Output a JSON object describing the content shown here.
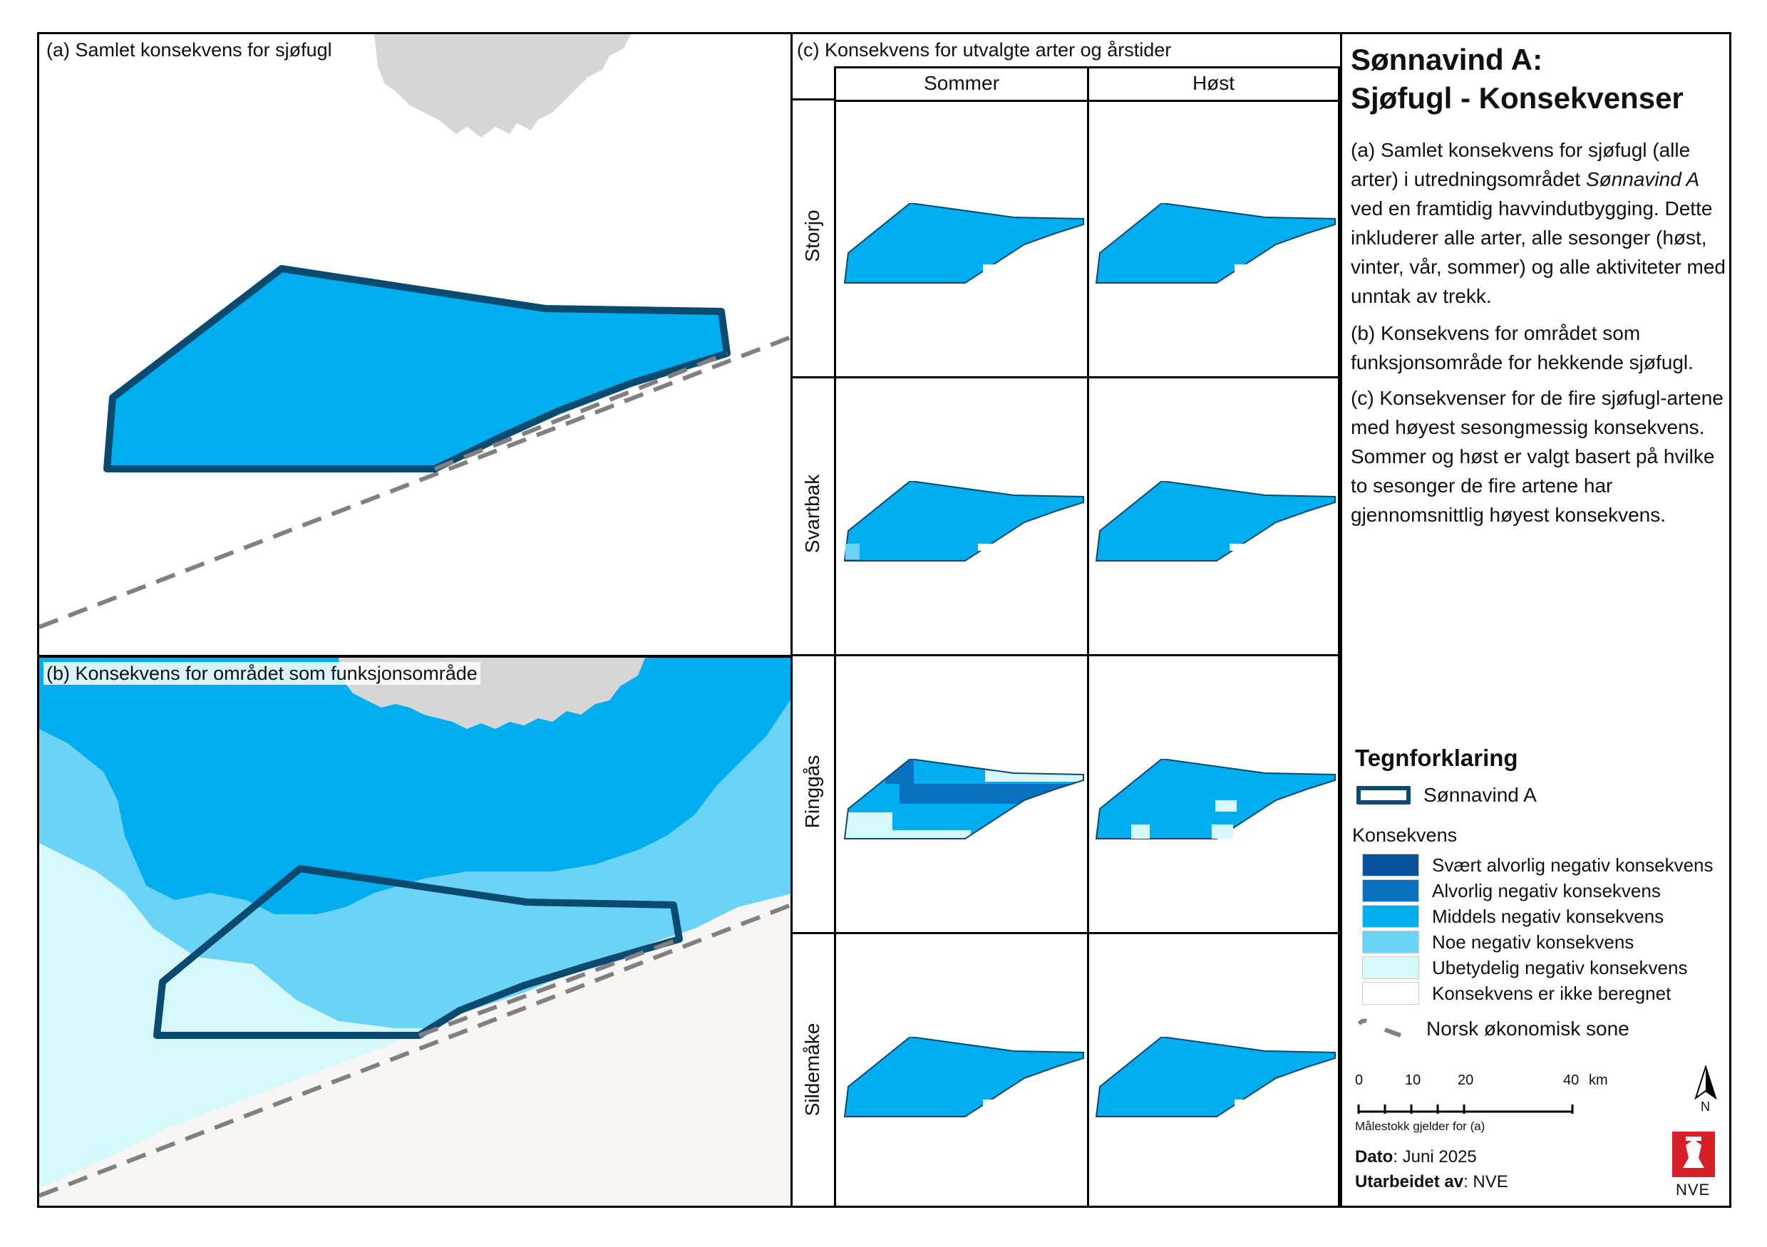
{
  "colors": {
    "zone_fill": "#00AEEF",
    "zone_stroke": "#0A4A70",
    "eez_line": "#808080",
    "land": "#D6D6D6",
    "sea_background_b": "#F7F6F4",
    "svaert_alvorlig": "#08519C",
    "alvorlig": "#0A71BE",
    "middels": "#00AEEF",
    "noe": "#6BD3F5",
    "ubetydelig": "#D7F8FB",
    "ikke_beregnet": "#FFFFFF"
  },
  "panel_a": {
    "title": "(a) Samlet konsekvens for sjøfugl"
  },
  "panel_b": {
    "title": "(b) Konsekvens for området som funksjonsområde"
  },
  "panel_c": {
    "title": "(c) Konsekvens for utvalgte arter og årstider",
    "columns": [
      "Sommer",
      "Høst"
    ],
    "rows": [
      "Storjo",
      "Svartbak",
      "Ringgås",
      "Sildemåke"
    ]
  },
  "side": {
    "title_line1": "Sønnavind A:",
    "title_line2": "Sjøfugl - Konsekvenser",
    "desc_a_pre": "(a) Samlet konsekvens for sjøfugl (alle arter) i utredningsområdet ",
    "desc_a_italic": "Sønnavind A",
    "desc_a_post": " ved en framtidig havvindutbygging. Dette inkluderer alle arter, alle sesonger (høst, vinter, vår, sommer) og alle aktiviteter med unntak av trekk.",
    "desc_b": "(b) Konsekvens for området som funksjonsområde for hekkende sjøfugl.",
    "desc_c": "(c) Konsekvenser for de fire sjøfugl-artene med høyest sesongmessig konsekvens. Sommer og høst er valgt basert på hvilke to sesonger de fire artene har gjennomsnittlig høyest konsekvens."
  },
  "legend": {
    "title": "Tegnforklaring",
    "area_label": "Sønnavind A",
    "konsekvens_heading": "Konsekvens",
    "classes": [
      {
        "label": "Svært alvorlig negativ konsekvens",
        "color": "#08519C"
      },
      {
        "label": "Alvorlig negativ konsekvens",
        "color": "#0A71BE"
      },
      {
        "label": "Middels negativ konsekvens",
        "color": "#00AEEF"
      },
      {
        "label": "Noe negativ konsekvens",
        "color": "#6BD3F5"
      },
      {
        "label": "Ubetydelig negativ konsekvens",
        "color": "#D7F8FB"
      },
      {
        "label": "Konsekvens er ikke beregnet",
        "color": "#FFFFFF"
      }
    ],
    "eez_label": "Norsk økonomisk sone"
  },
  "scale": {
    "ticks": [
      "0",
      "10",
      "20",
      "40"
    ],
    "unit": "km",
    "note": "Målestokk gjelder for (a)",
    "north": "N"
  },
  "footer": {
    "date_label": "Dato",
    "date_value": ": Juni 2025",
    "author_label": "Utarbeidet av",
    "author_value": ": NVE",
    "logo_text": "NVE"
  }
}
